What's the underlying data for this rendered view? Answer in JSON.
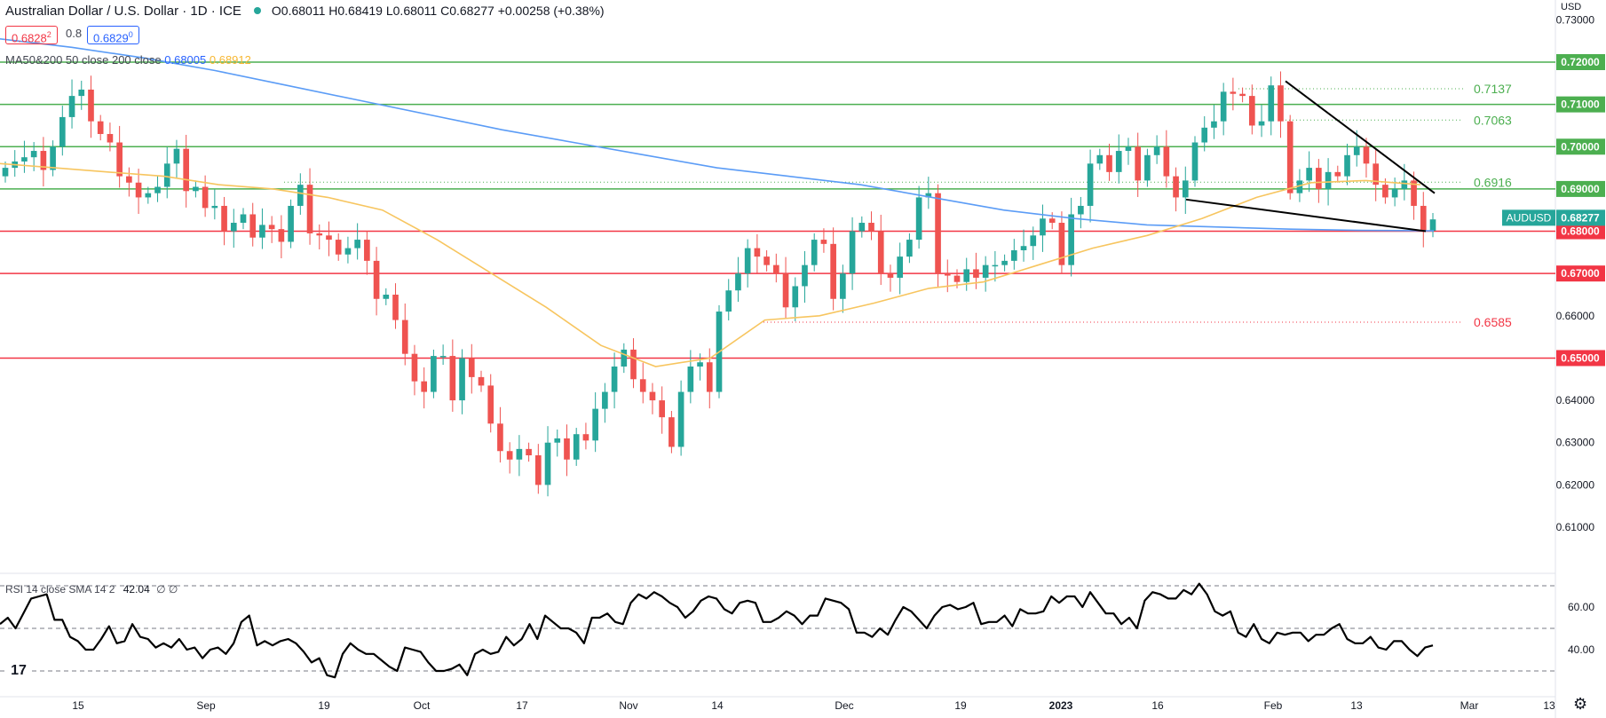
{
  "header": {
    "title": "Australian Dollar / U.S. Dollar · 1D · ICE",
    "ohlc": "O0.68011 H0.68419 L0.68011 C0.68277 +0.00258 (+0.38%)",
    "bid": "0.6828",
    "bid_sup": "2",
    "spread": "0.8",
    "ask": "0.6829",
    "ask_sup": "0"
  },
  "ma_legend": {
    "label": "MA50&200 50 close 200 close",
    "ma200_value": "0.68005",
    "ma50_value": "0.68912"
  },
  "rsi_legend": {
    "label": "RSI 14 close SMA 14 2",
    "value": "42.04",
    "extra": "∅ ∅"
  },
  "colors": {
    "up": "#26a69a",
    "down": "#ef5350",
    "ma50": "#f7c55f",
    "ma200": "#5b9cf6",
    "support_green": "#4caf50",
    "resistance_red": "#f23645",
    "trendline": "#000000",
    "rsi": "#000000"
  },
  "icons": {
    "logo": "tradingview-logo-icon",
    "settings": "gear-icon"
  },
  "chart_data": {
    "type": "candlestick",
    "symbol": "AUDUSD",
    "currency": "USD",
    "last_price": "0.68277",
    "y_ticks": [
      "0.73000",
      "0.72000",
      "0.71000",
      "0.70000",
      "0.69000",
      "0.68000",
      "0.67000",
      "0.66000",
      "0.65000",
      "0.64000",
      "0.63000",
      "0.62000",
      "0.61000"
    ],
    "ylim": [
      0.6035,
      0.7335
    ],
    "x_ticks": [
      "15",
      "Sep",
      "19",
      "Oct",
      "17",
      "Nov",
      "14",
      "Dec",
      "19",
      "2023",
      "16",
      "Feb",
      "13",
      "Mar",
      "13"
    ],
    "horizontal_levels": [
      {
        "value": 0.72,
        "label": "0.72000",
        "color": "green"
      },
      {
        "value": 0.71,
        "label": "0.71000",
        "color": "green"
      },
      {
        "value": 0.7,
        "label": "0.70000",
        "color": "green"
      },
      {
        "value": 0.69,
        "label": "0.69000",
        "color": "green"
      },
      {
        "value": 0.68,
        "label": "0.68000",
        "color": "red"
      },
      {
        "value": 0.67,
        "label": "0.67000",
        "color": "red"
      },
      {
        "value": 0.65,
        "label": "0.65000",
        "color": "red"
      }
    ],
    "fib_levels": [
      {
        "value": 0.7137,
        "label": "0.7137",
        "color": "green"
      },
      {
        "value": 0.7063,
        "label": "0.7063",
        "color": "green"
      },
      {
        "value": 0.6916,
        "label": "0.6916",
        "color": "green"
      },
      {
        "value": 0.6585,
        "label": "0.6585",
        "color": "red"
      }
    ],
    "trendlines": [
      {
        "from": [
          0.7155
        ],
        "to": [
          0.689
        ]
      },
      {
        "from": [
          0.6875
        ],
        "to": [
          0.68
        ]
      }
    ],
    "closes": [
      0.695,
      0.6965,
      0.6975,
      0.699,
      0.6945,
      0.7,
      0.707,
      0.712,
      0.7135,
      0.706,
      0.703,
      0.701,
      0.693,
      0.6915,
      0.688,
      0.689,
      0.6905,
      0.696,
      0.6995,
      0.6895,
      0.6905,
      0.6855,
      0.686,
      0.68,
      0.682,
      0.684,
      0.6785,
      0.6815,
      0.6805,
      0.6775,
      0.686,
      0.691,
      0.6795,
      0.679,
      0.678,
      0.6745,
      0.676,
      0.678,
      0.673,
      0.664,
      0.665,
      0.659,
      0.651,
      0.6445,
      0.642,
      0.6505,
      0.6505,
      0.64,
      0.65,
      0.6455,
      0.6435,
      0.6345,
      0.628,
      0.626,
      0.6285,
      0.627,
      0.62,
      0.63,
      0.631,
      0.626,
      0.632,
      0.6305,
      0.638,
      0.642,
      0.648,
      0.652,
      0.645,
      0.642,
      0.64,
      0.636,
      0.629,
      0.642,
      0.648,
      0.649,
      0.642,
      0.661,
      0.666,
      0.67,
      0.676,
      0.674,
      0.672,
      0.67,
      0.662,
      0.667,
      0.672,
      0.678,
      0.677,
      0.664,
      0.67,
      0.68,
      0.682,
      0.68,
      0.67,
      0.669,
      0.674,
      0.678,
      0.688,
      0.689,
      0.67,
      0.6695,
      0.668,
      0.671,
      0.669,
      0.672,
      0.672,
      0.673,
      0.6755,
      0.6765,
      0.679,
      0.683,
      0.682,
      0.672,
      0.684,
      0.686,
      0.696,
      0.698,
      0.694,
      0.699,
      0.7,
      0.692,
      0.698,
      0.7,
      0.693,
      0.688,
      0.692,
      0.701,
      0.7045,
      0.706,
      0.713,
      0.7125,
      0.712,
      0.705,
      0.706,
      0.7145,
      0.706,
      0.689,
      0.692,
      0.695,
      0.69,
      0.694,
      0.693,
      0.698,
      0.7,
      0.696,
      0.691,
      0.688,
      0.69,
      0.692,
      0.686,
      0.6801,
      0.6828
    ],
    "ma50": [
      0.696,
      0.695,
      0.694,
      0.693,
      0.691,
      0.69,
      0.688,
      0.685,
      0.678,
      0.67,
      0.662,
      0.653,
      0.648,
      0.65,
      0.659,
      0.66,
      0.663,
      0.6665,
      0.668,
      0.672,
      0.676,
      0.679,
      0.683,
      0.688,
      0.6915,
      0.692,
      0.691
    ],
    "ma200": [
      0.7255,
      0.7235,
      0.721,
      0.718,
      0.7145,
      0.711,
      0.7075,
      0.704,
      0.701,
      0.698,
      0.695,
      0.693,
      0.691,
      0.688,
      0.685,
      0.683,
      0.6815,
      0.681,
      0.6805,
      0.6802,
      0.6801
    ],
    "rsi": {
      "y_ticks": [
        "60.00",
        "40.00"
      ],
      "ylim": [
        25,
        72
      ],
      "bands": [
        70,
        50,
        30
      ],
      "values": [
        52,
        55,
        50,
        57,
        64,
        65,
        66,
        54,
        54,
        46,
        44,
        40,
        40,
        45,
        51,
        43,
        44,
        52,
        46,
        45,
        41,
        43,
        41,
        45,
        40,
        41,
        36,
        40,
        41,
        38,
        43,
        53,
        56,
        42,
        44,
        42,
        44,
        45,
        43,
        39,
        34,
        36,
        28,
        27,
        38,
        43,
        40,
        38,
        38,
        35,
        32,
        30,
        41,
        40,
        39,
        34,
        30,
        30,
        31,
        33,
        28,
        38,
        40,
        38,
        39,
        46,
        42,
        45,
        52,
        45,
        56,
        53,
        50,
        50,
        48,
        43,
        55,
        55,
        57,
        53,
        52,
        62,
        66,
        64,
        67,
        65,
        62,
        60,
        55,
        58,
        63,
        65,
        64,
        59,
        57,
        62,
        63,
        62,
        53,
        53,
        55,
        58,
        56,
        52,
        56,
        56,
        64,
        63,
        62,
        59,
        48,
        48,
        46,
        50,
        47,
        54,
        60,
        58,
        54,
        50,
        56,
        60,
        61,
        59,
        60,
        62,
        52,
        53,
        53,
        56,
        51,
        59,
        57,
        57,
        58,
        65,
        62,
        65,
        65,
        60,
        67,
        62,
        57,
        57,
        52,
        55,
        50,
        63,
        67,
        66,
        64,
        64,
        68,
        66,
        71,
        66,
        58,
        56,
        58,
        48,
        46,
        52,
        45,
        43,
        48,
        47,
        48,
        48,
        44,
        47,
        47,
        50,
        52,
        45,
        43,
        43,
        46,
        41,
        40,
        44,
        44,
        40,
        37,
        41,
        42
      ]
    }
  }
}
